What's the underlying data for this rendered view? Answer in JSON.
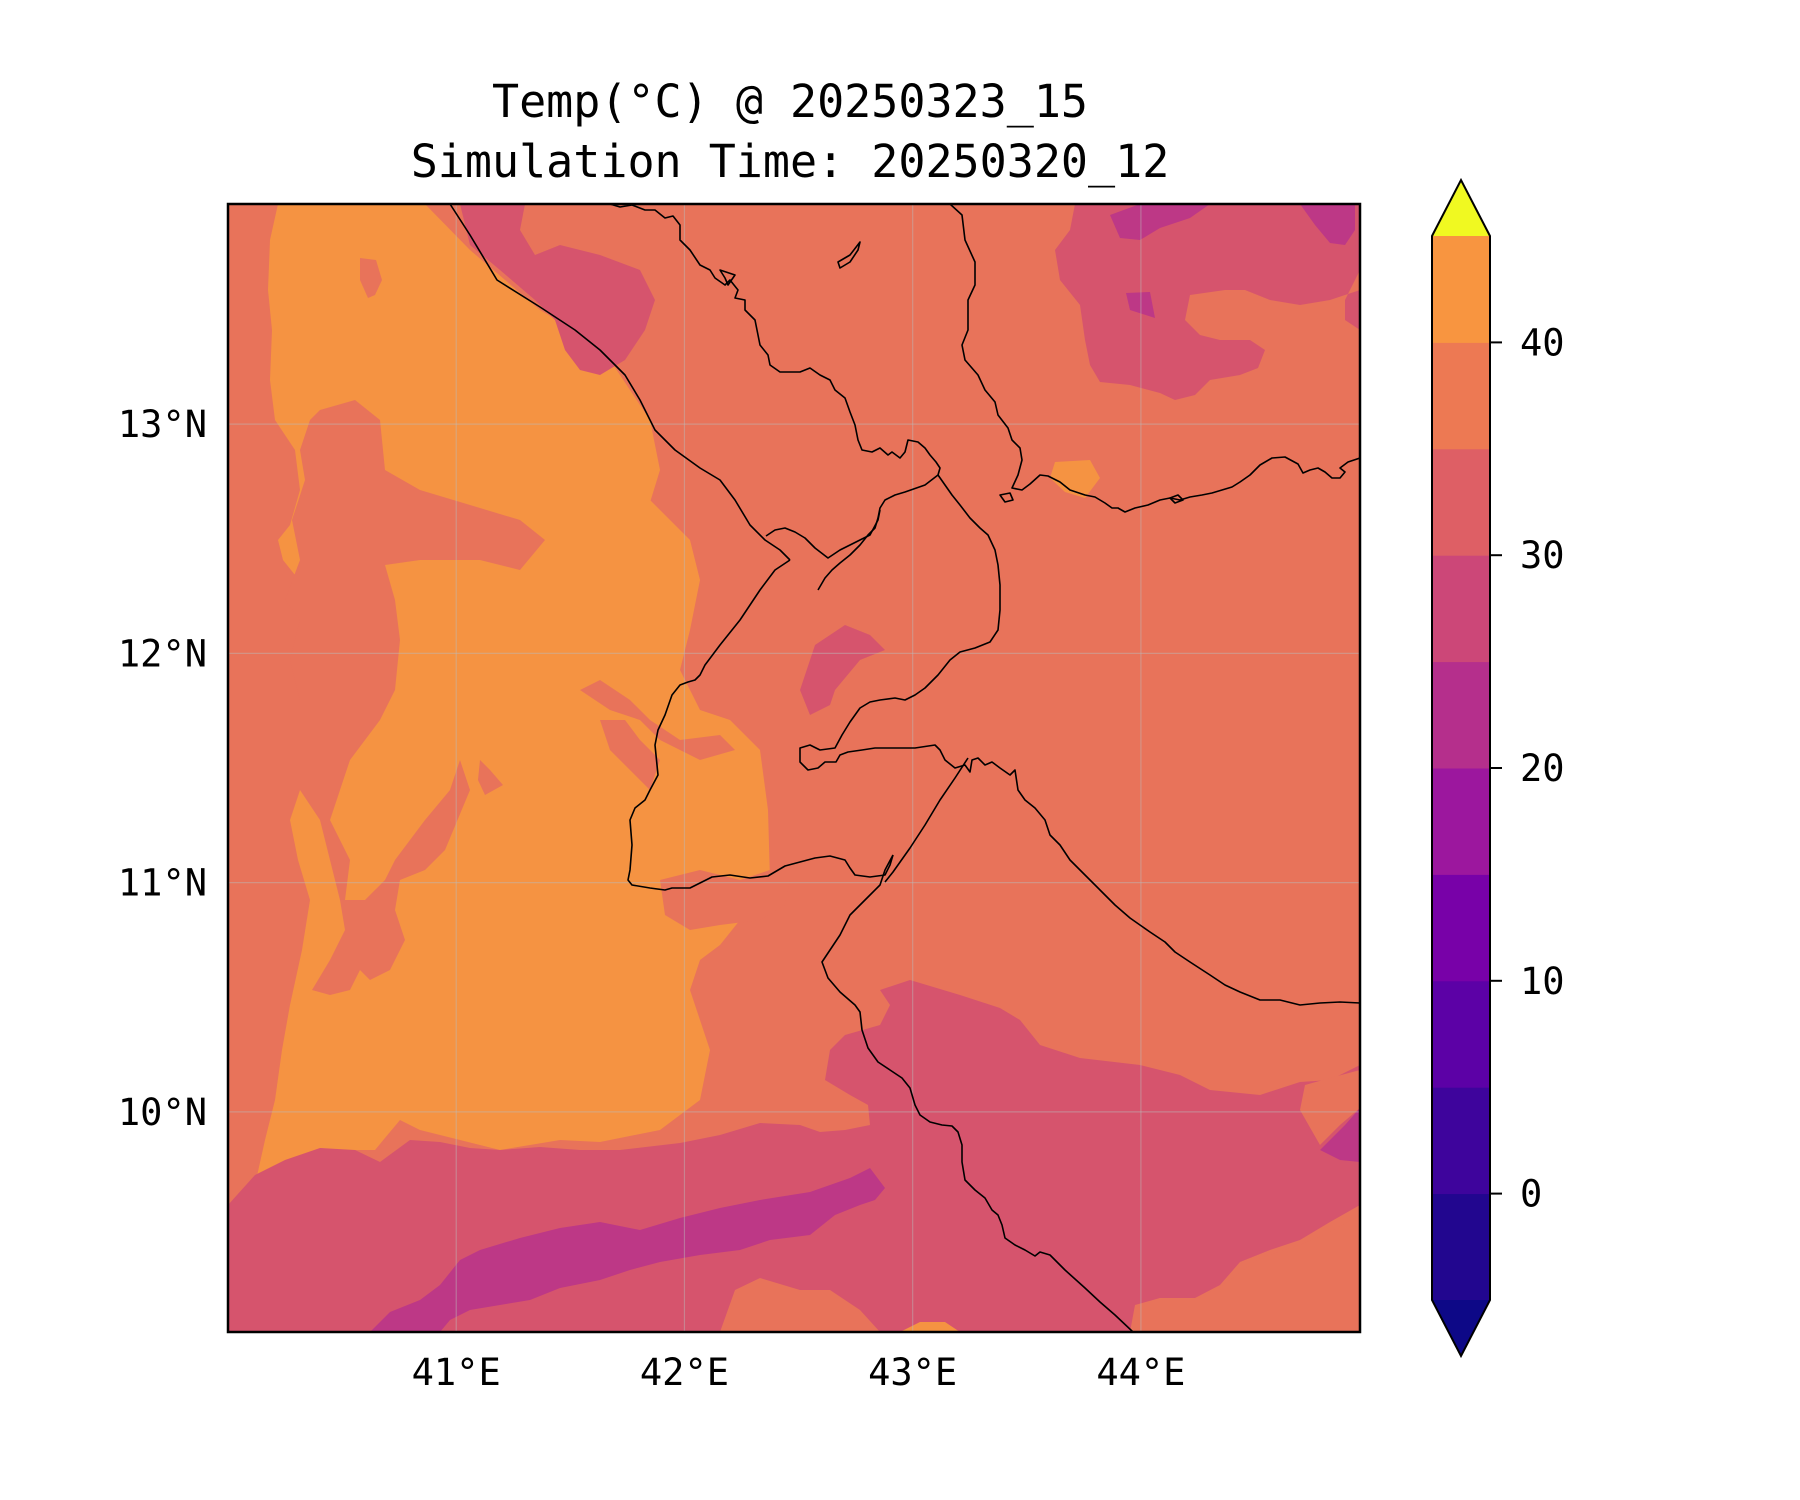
{
  "title": {
    "line1": "Temp(°C) @ 20250323_15",
    "line2": "Simulation Time: 20250320_12"
  },
  "map": {
    "region_lon": [
      40.0,
      44.96
    ],
    "region_lat": [
      9.04,
      13.96
    ],
    "x_ticks": [
      {
        "value": 41,
        "label": "41°E"
      },
      {
        "value": 42,
        "label": "42°E"
      },
      {
        "value": 43,
        "label": "43°E"
      },
      {
        "value": 44,
        "label": "44°E"
      }
    ],
    "y_ticks": [
      {
        "value": 13,
        "label": "13°N"
      },
      {
        "value": 12,
        "label": "12°N"
      },
      {
        "value": 11,
        "label": "11°N"
      },
      {
        "value": 10,
        "label": "10°N"
      }
    ],
    "gridlines": true
  },
  "colorbar": {
    "levels": [
      -5,
      0,
      5,
      10,
      15,
      20,
      25,
      30,
      35,
      40,
      45
    ],
    "colors": [
      "#22068f",
      "#3e049c",
      "#5c01a6",
      "#7801a8",
      "#9c179e",
      "#b52f8c",
      "#cc4778",
      "#de5f65",
      "#ed7953",
      "#f89540",
      "#fdb42f",
      "#f0f921"
    ],
    "under_color": "#0d0887",
    "over_color": "#f0f921",
    "tick_labels": [
      {
        "value": 0,
        "label": "0"
      },
      {
        "value": 10,
        "label": "10"
      },
      {
        "value": 20,
        "label": "20"
      },
      {
        "value": 30,
        "label": "30"
      },
      {
        "value": 40,
        "label": "40"
      }
    ]
  },
  "field_colors": {
    "base": "#e8735a",
    "warm": "#f59342",
    "hot": "#f7a33e",
    "cool": "#d6546d",
    "cooler": "#bd3886"
  }
}
